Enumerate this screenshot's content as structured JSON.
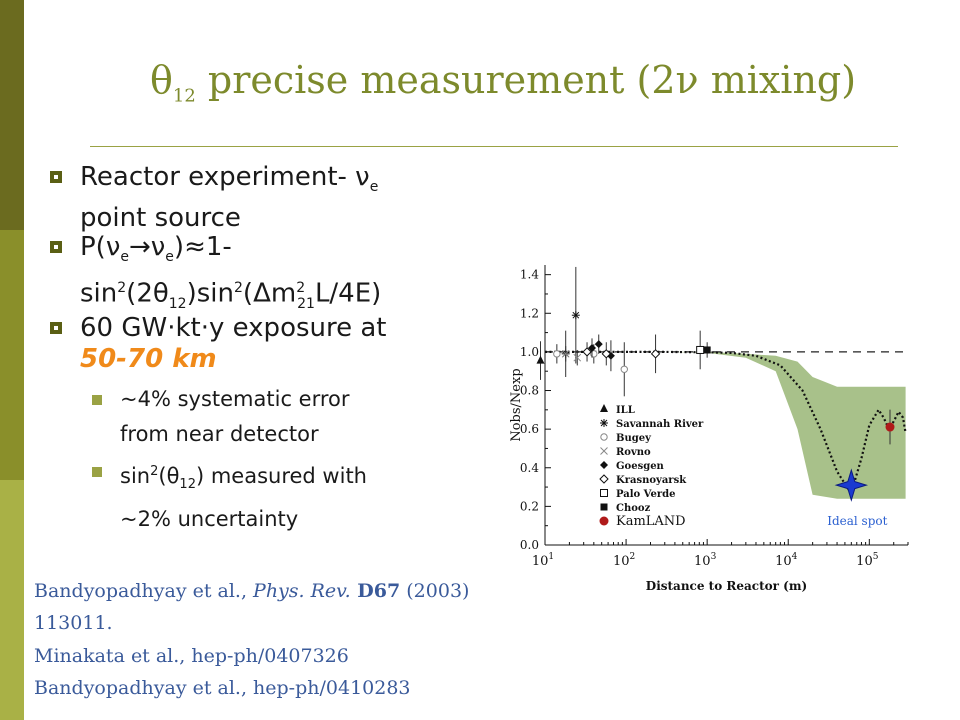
{
  "slide": {
    "title_main": "θ",
    "title_sub": "12",
    "title_rest": " precise measurement (2ν mixing)",
    "bullets": {
      "b1_line1": "Reactor experiment- ν",
      "b1_sub": "e",
      "b1_line2": "point source",
      "b2_line1": "P(ν",
      "b2_sub_e1": "e",
      "b2_arrow": "→ν",
      "b2_sub_e2": "e",
      "b2_rest": ")≈1-",
      "b2_line2_a": "sin",
      "b2_sup2a": "2",
      "b2_line2_b": "(2θ",
      "b2_sub12": "12",
      "b2_line2_c": ")sin",
      "b2_sup2b": "2",
      "b2_line2_d": "(Δm",
      "b2_sup2c": "2",
      "b2_sub21": "21",
      "b2_line2_e": "L/4E)",
      "b3_line1": "60 GW·kt·y exposure at",
      "b3_line2": "50-70 km"
    },
    "subbullets": {
      "s1_line1": "~4% systematic error",
      "s1_line2": "from near detector",
      "s2_a": "sin",
      "s2_sup": "2",
      "s2_b": "(θ",
      "s2_sub": "12",
      "s2_c": ") measured with",
      "s2_line2": "~2% uncertainty"
    },
    "references": {
      "r1_a": "Bandyopadhyay et al., ",
      "r1_journal": "Phys. Rev.",
      "r1_vol": " D67",
      "r1_b": " (2003)",
      "r1_line2": "113011.",
      "r2": "Minakata et al., hep-ph/0407326",
      "r3": "Bandyopadhyay et al., hep-ph/0410283"
    }
  },
  "colors": {
    "sidebar_dark": "#6b6b1f",
    "title": "#7d8a2c",
    "accent_orange": "#f08a1a",
    "reference_blue": "#3a5a9a",
    "band_green": "#a8c18a",
    "kamland_red": "#b01a1a",
    "ideal_spot_blue": "#1a3ad0"
  },
  "chart_data": {
    "type": "scatter",
    "xlabel": "Distance to Reactor (m)",
    "ylabel": "Nobs/Nexp",
    "xscale": "log",
    "xlim": [
      10,
      300000
    ],
    "ylim": [
      0,
      1.45
    ],
    "yticks": [
      "0.0",
      "0.2",
      "0.4",
      "0.6",
      "0.8",
      "1.0",
      "1.2",
      "1.4"
    ],
    "xticks": [
      {
        "base": "10",
        "exp": "1",
        "x": 10
      },
      {
        "base": "10",
        "exp": "2",
        "x": 100
      },
      {
        "base": "10",
        "exp": "3",
        "x": 1000
      },
      {
        "base": "10",
        "exp": "4",
        "x": 10000
      },
      {
        "base": "10",
        "exp": "5",
        "x": 100000
      }
    ],
    "reference_line_y": 1.0,
    "legend_position": "bottom-left",
    "annotation": "Ideal spot",
    "ideal_spot": {
      "x": 60000,
      "y": 0.31
    },
    "legend": [
      {
        "label": "ILL",
        "marker": "triangle"
      },
      {
        "label": "Savannah River",
        "marker": "star"
      },
      {
        "label": "Bugey",
        "marker": "circle-open"
      },
      {
        "label": "Rovno",
        "marker": "cross"
      },
      {
        "label": "Goesgen",
        "marker": "diamond"
      },
      {
        "label": "Krasnoyarsk",
        "marker": "diamond-open"
      },
      {
        "label": "Palo Verde",
        "marker": "square-open"
      },
      {
        "label": "Chooz",
        "marker": "square"
      },
      {
        "label": "KamLAND",
        "marker": "circle-red"
      }
    ],
    "series": [
      {
        "name": "ILL",
        "points": [
          {
            "x": 8.8,
            "y": 0.955,
            "err": 0.1
          }
        ]
      },
      {
        "name": "Savannah River",
        "points": [
          {
            "x": 18,
            "y": 0.99,
            "err": 0.12
          },
          {
            "x": 24,
            "y": 1.19,
            "err": 0.25
          }
        ]
      },
      {
        "name": "Bugey",
        "points": [
          {
            "x": 14,
            "y": 0.99,
            "err": 0.05
          },
          {
            "x": 40,
            "y": 0.99,
            "err": 0.05
          },
          {
            "x": 95,
            "y": 0.91,
            "err": 0.14
          }
        ]
      },
      {
        "name": "Rovno",
        "points": [
          {
            "x": 18,
            "y": 0.99,
            "err": 0.04
          },
          {
            "x": 25,
            "y": 0.97,
            "err": 0.04
          }
        ]
      },
      {
        "name": "Goesgen",
        "points": [
          {
            "x": 38,
            "y": 1.02,
            "err": 0.05
          },
          {
            "x": 46,
            "y": 1.04,
            "err": 0.05
          },
          {
            "x": 65,
            "y": 0.98,
            "err": 0.08
          }
        ]
      },
      {
        "name": "Krasnoyarsk",
        "points": [
          {
            "x": 33,
            "y": 1.0,
            "err": 0.05
          },
          {
            "x": 57,
            "y": 0.99,
            "err": 0.06
          },
          {
            "x": 231,
            "y": 0.99,
            "err": 0.1
          }
        ]
      },
      {
        "name": "Palo Verde",
        "points": [
          {
            "x": 820,
            "y": 1.01,
            "err": 0.1
          }
        ]
      },
      {
        "name": "Chooz",
        "points": [
          {
            "x": 1000,
            "y": 1.01,
            "err": 0.04
          }
        ]
      },
      {
        "name": "KamLAND",
        "points": [
          {
            "x": 180000,
            "y": 0.611,
            "err": 0.09
          }
        ]
      }
    ],
    "prediction_curve": [
      [
        10,
        1.0
      ],
      [
        300,
        1.0
      ],
      [
        1000,
        0.998
      ],
      [
        2000,
        0.995
      ],
      [
        4000,
        0.98
      ],
      [
        8000,
        0.93
      ],
      [
        15000,
        0.8
      ],
      [
        25000,
        0.6
      ],
      [
        40000,
        0.38
      ],
      [
        55000,
        0.29
      ],
      [
        65000,
        0.32
      ],
      [
        80000,
        0.45
      ],
      [
        100000,
        0.62
      ],
      [
        130000,
        0.7
      ],
      [
        150000,
        0.66
      ],
      [
        175000,
        0.6
      ],
      [
        200000,
        0.64
      ],
      [
        230000,
        0.69
      ],
      [
        260000,
        0.66
      ],
      [
        280000,
        0.58
      ]
    ],
    "band_upper": [
      [
        300,
        1.0
      ],
      [
        1000,
        1.0
      ],
      [
        3000,
        0.99
      ],
      [
        7000,
        0.98
      ],
      [
        13000,
        0.95
      ],
      [
        20000,
        0.87
      ],
      [
        40000,
        0.82
      ],
      [
        100000,
        0.82
      ],
      [
        280000,
        0.82
      ]
    ],
    "band_lower": [
      [
        300,
        1.0
      ],
      [
        1000,
        0.995
      ],
      [
        3000,
        0.97
      ],
      [
        7000,
        0.9
      ],
      [
        13000,
        0.6
      ],
      [
        20000,
        0.26
      ],
      [
        40000,
        0.24
      ],
      [
        100000,
        0.24
      ],
      [
        280000,
        0.24
      ]
    ]
  }
}
